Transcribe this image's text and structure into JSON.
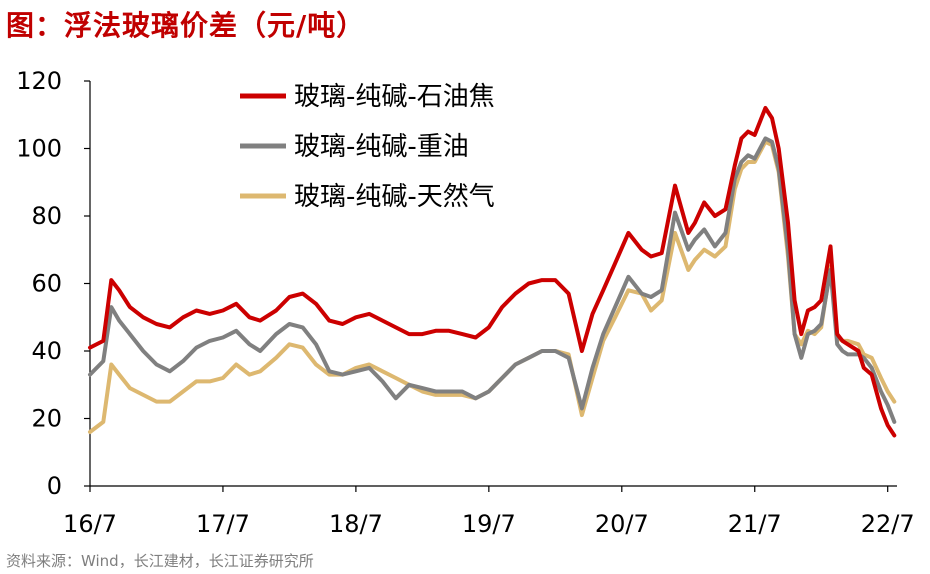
{
  "title": "图：浮法玻璃价差（元/吨）",
  "source": "资料来源：Wind，长江建材，长江证券研究所",
  "chart_data": {
    "type": "line",
    "title": "图：浮法玻璃价差（元/吨）",
    "xlabel": "",
    "ylabel": "",
    "xlim": [
      2016.5,
      2022.57
    ],
    "ylim": [
      0,
      120
    ],
    "y_ticks": [
      0,
      20,
      40,
      60,
      80,
      100,
      120
    ],
    "x_ticks": [
      {
        "label": "16/7",
        "value": 2016.5
      },
      {
        "label": "17/7",
        "value": 2017.5
      },
      {
        "label": "18/7",
        "value": 2018.5
      },
      {
        "label": "19/7",
        "value": 2019.5
      },
      {
        "label": "20/7",
        "value": 2020.5
      },
      {
        "label": "21/7",
        "value": 2021.5
      },
      {
        "label": "22/7",
        "value": 2022.5
      }
    ],
    "legend_position": "top-center",
    "grid": false,
    "series": [
      {
        "name": "玻璃-纯碱-石油焦",
        "color": "#cc0000",
        "x": [
          2016.5,
          2016.6,
          2016.66,
          2016.72,
          2016.8,
          2016.9,
          2017.0,
          2017.1,
          2017.2,
          2017.3,
          2017.4,
          2017.5,
          2017.6,
          2017.7,
          2017.78,
          2017.9,
          2018.0,
          2018.1,
          2018.2,
          2018.3,
          2018.4,
          2018.5,
          2018.6,
          2018.7,
          2018.8,
          2018.9,
          2019.0,
          2019.1,
          2019.2,
          2019.3,
          2019.4,
          2019.5,
          2019.6,
          2019.7,
          2019.8,
          2019.9,
          2020.0,
          2020.1,
          2020.2,
          2020.28,
          2020.36,
          2020.45,
          2020.55,
          2020.65,
          2020.72,
          2020.8,
          2020.9,
          2021.0,
          2021.05,
          2021.12,
          2021.2,
          2021.28,
          2021.35,
          2021.4,
          2021.45,
          2021.5,
          2021.58,
          2021.63,
          2021.68,
          2021.75,
          2021.8,
          2021.85,
          2021.9,
          2021.95,
          2022.0,
          2022.07,
          2022.12,
          2022.16,
          2022.2,
          2022.28,
          2022.32,
          2022.38,
          2022.45,
          2022.5,
          2022.55
        ],
        "values": [
          41,
          43,
          61,
          58,
          53,
          50,
          48,
          47,
          50,
          52,
          51,
          52,
          54,
          50,
          49,
          52,
          56,
          57,
          54,
          49,
          48,
          50,
          51,
          49,
          47,
          45,
          45,
          46,
          46,
          45,
          44,
          47,
          53,
          57,
          60,
          61,
          61,
          57,
          40,
          51,
          58,
          66,
          75,
          70,
          68,
          69,
          89,
          75,
          78,
          84,
          80,
          82,
          95,
          103,
          105,
          104,
          112,
          109,
          100,
          78,
          55,
          45,
          52,
          53,
          55,
          71,
          45,
          43,
          42,
          40,
          35,
          33,
          23,
          18,
          15
        ]
      },
      {
        "name": "玻璃-纯碱-重油",
        "color": "#808080",
        "x": [
          2016.5,
          2016.6,
          2016.66,
          2016.72,
          2016.8,
          2016.9,
          2017.0,
          2017.1,
          2017.2,
          2017.3,
          2017.4,
          2017.5,
          2017.6,
          2017.7,
          2017.78,
          2017.9,
          2018.0,
          2018.1,
          2018.2,
          2018.3,
          2018.4,
          2018.5,
          2018.6,
          2018.7,
          2018.8,
          2018.9,
          2019.0,
          2019.1,
          2019.2,
          2019.3,
          2019.4,
          2019.5,
          2019.6,
          2019.7,
          2019.8,
          2019.9,
          2020.0,
          2020.1,
          2020.2,
          2020.28,
          2020.36,
          2020.45,
          2020.55,
          2020.65,
          2020.72,
          2020.8,
          2020.9,
          2021.0,
          2021.05,
          2021.12,
          2021.2,
          2021.28,
          2021.35,
          2021.4,
          2021.45,
          2021.5,
          2021.58,
          2021.63,
          2021.68,
          2021.75,
          2021.8,
          2021.85,
          2021.9,
          2021.95,
          2022.0,
          2022.07,
          2022.12,
          2022.16,
          2022.2,
          2022.28,
          2022.32,
          2022.38,
          2022.45,
          2022.5,
          2022.55
        ],
        "values": [
          33,
          37,
          53,
          49,
          45,
          40,
          36,
          34,
          37,
          41,
          43,
          44,
          46,
          42,
          40,
          45,
          48,
          47,
          42,
          34,
          33,
          34,
          35,
          31,
          26,
          30,
          29,
          28,
          28,
          28,
          26,
          28,
          32,
          36,
          38,
          40,
          40,
          38,
          23,
          35,
          45,
          53,
          62,
          57,
          56,
          58,
          81,
          70,
          73,
          76,
          71,
          75,
          91,
          96,
          98,
          97,
          103,
          102,
          94,
          70,
          45,
          38,
          45,
          46,
          48,
          64,
          42,
          40,
          39,
          39,
          38,
          35,
          28,
          24,
          19
        ]
      },
      {
        "name": "玻璃-纯碱-天然气",
        "color": "#ddb870",
        "x": [
          2016.5,
          2016.6,
          2016.66,
          2016.72,
          2016.8,
          2016.9,
          2017.0,
          2017.1,
          2017.2,
          2017.3,
          2017.4,
          2017.5,
          2017.6,
          2017.7,
          2017.78,
          2017.9,
          2018.0,
          2018.1,
          2018.2,
          2018.3,
          2018.4,
          2018.5,
          2018.6,
          2018.7,
          2018.8,
          2018.9,
          2019.0,
          2019.1,
          2019.2,
          2019.3,
          2019.4,
          2019.5,
          2019.6,
          2019.7,
          2019.8,
          2019.9,
          2020.0,
          2020.1,
          2020.2,
          2020.28,
          2020.36,
          2020.45,
          2020.55,
          2020.65,
          2020.72,
          2020.8,
          2020.9,
          2021.0,
          2021.05,
          2021.12,
          2021.2,
          2021.28,
          2021.35,
          2021.4,
          2021.45,
          2021.5,
          2021.58,
          2021.63,
          2021.68,
          2021.75,
          2021.8,
          2021.85,
          2021.9,
          2021.95,
          2022.0,
          2022.07,
          2022.12,
          2022.16,
          2022.2,
          2022.28,
          2022.32,
          2022.38,
          2022.45,
          2022.5,
          2022.55
        ],
        "values": [
          16,
          19,
          36,
          33,
          29,
          27,
          25,
          25,
          28,
          31,
          31,
          32,
          36,
          33,
          34,
          38,
          42,
          41,
          36,
          33,
          33,
          35,
          36,
          34,
          32,
          30,
          28,
          27,
          27,
          27,
          26,
          28,
          32,
          36,
          38,
          40,
          40,
          39,
          21,
          32,
          43,
          50,
          58,
          57,
          52,
          55,
          75,
          64,
          67,
          70,
          68,
          71,
          88,
          94,
          96,
          96,
          102,
          101,
          93,
          68,
          45,
          42,
          46,
          45,
          47,
          65,
          44,
          43,
          43,
          42,
          39,
          38,
          32,
          28,
          25
        ]
      }
    ]
  }
}
